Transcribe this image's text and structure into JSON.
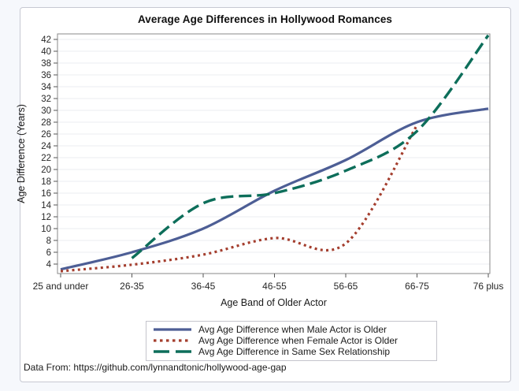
{
  "title": "Average Age Differences in Hollywood Romances",
  "footer": "Data From: https://github.com/lynnandtonic/hollywood-age-gap",
  "colors": {
    "page_background": "#f6f8fc",
    "panel_border": "#c6c8d2",
    "plot_frame": "#898989",
    "gridline": "#ebecf1",
    "tick": "#565656",
    "text": "#262626"
  },
  "chart_data": {
    "type": "line",
    "title": "Average Age Differences in Hollywood Romances",
    "xlabel": "Age Band of Older Actor",
    "ylabel": "Age Difference (Years)",
    "categories": [
      "25 and under",
      "26-35",
      "36-45",
      "46-55",
      "56-65",
      "66-75",
      "76 plus"
    ],
    "y_ticks": [
      4,
      6,
      8,
      10,
      12,
      14,
      16,
      18,
      20,
      22,
      24,
      26,
      28,
      30,
      32,
      34,
      36,
      38,
      40,
      42
    ],
    "ylim": [
      2.4,
      43
    ],
    "grid": "horizontal",
    "legend_position": "bottom",
    "series": [
      {
        "name": "Avg Age Difference when Male Actor is Older",
        "color": "#4d5e95",
        "style": "solid",
        "values": [
          3.1,
          6,
          10,
          16.4,
          21.6,
          28,
          30.3
        ]
      },
      {
        "name": "Avg Age Difference when Female Actor is Older",
        "color": "#a43e2e",
        "style": "dotted",
        "values": [
          2.8,
          3.9,
          5.6,
          8.4,
          7.5,
          27.5,
          null
        ]
      },
      {
        "name": "Avg Age Difference in Same Sex Relationship",
        "color": "#0d6e5a",
        "style": "dashed",
        "values": [
          null,
          5,
          14.3,
          16,
          19.8,
          26.5,
          42.7
        ]
      }
    ]
  }
}
